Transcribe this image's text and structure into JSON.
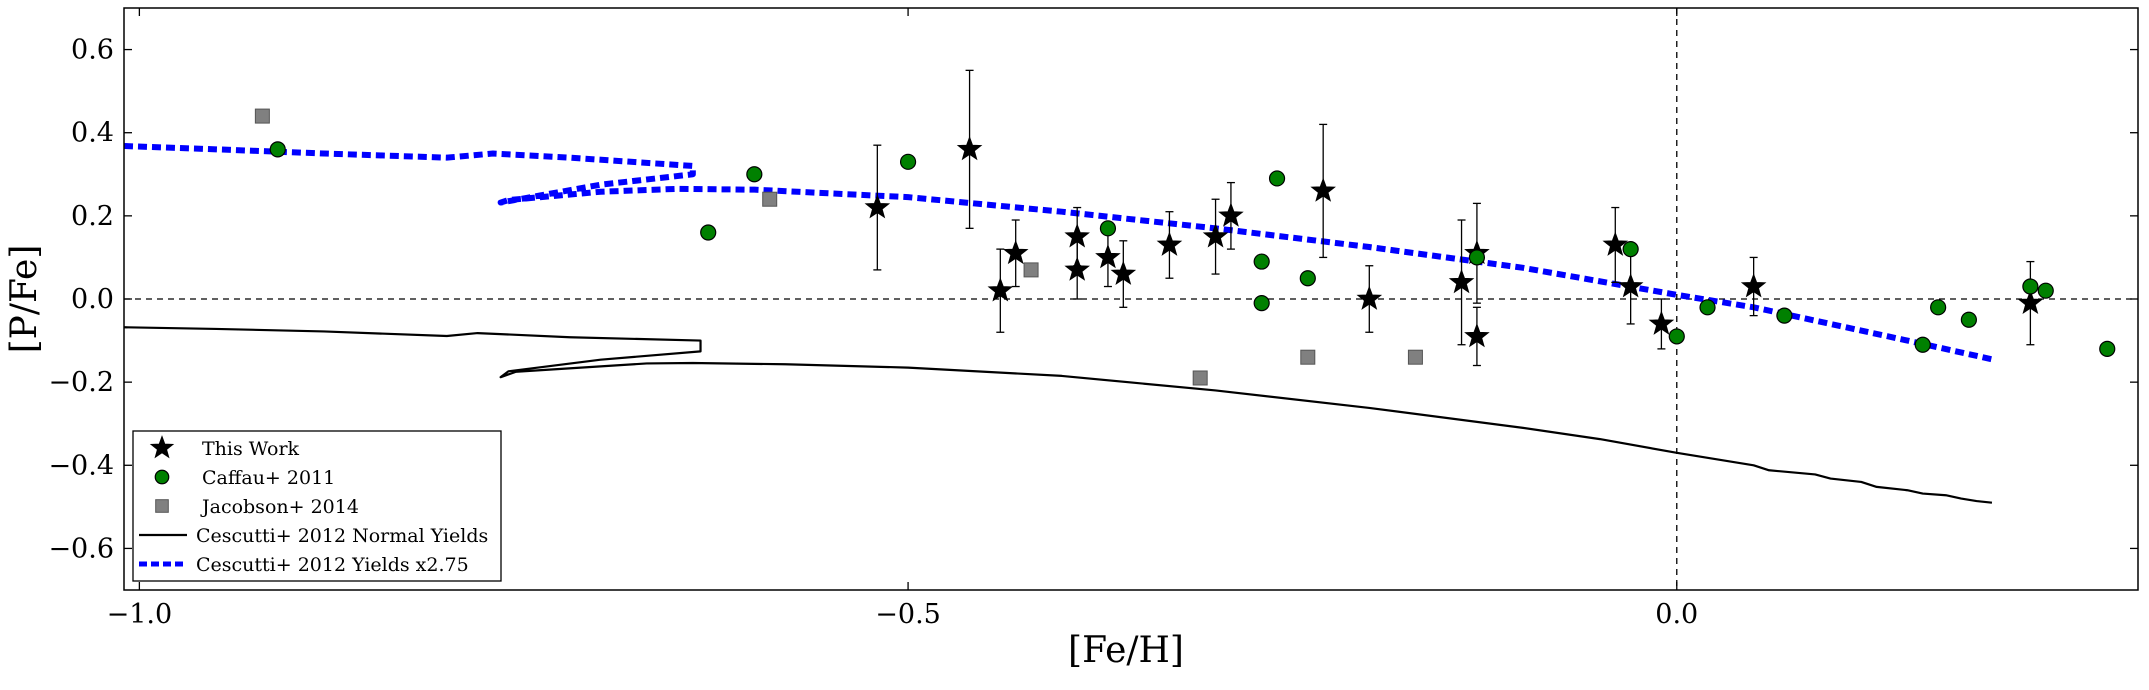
{
  "chart_data": {
    "type": "scatter",
    "xlabel": "[Fe/H]",
    "ylabel": "[P/Fe]",
    "xlim": [
      -1.01,
      0.3
    ],
    "ylim": [
      -0.7,
      0.7
    ],
    "xticks": [
      -1.0,
      -0.5,
      0.0
    ],
    "xtick_labels": [
      "−1.0",
      "−0.5",
      "0.0"
    ],
    "yticks": [
      -0.6,
      -0.4,
      -0.2,
      0.0,
      0.2,
      0.4,
      0.6
    ],
    "ytick_labels": [
      "−0.6",
      "−0.4",
      "−0.2",
      "0.0",
      "0.2",
      "0.4",
      "0.6"
    ],
    "grid": false,
    "legend_position": "lower-left",
    "reference_lines": {
      "horizontal_y": 0.0,
      "vertical_x": 0.0,
      "style": "dashed"
    },
    "series": [
      {
        "name": "This Work",
        "kind": "points",
        "marker": "star",
        "color": "#000000",
        "points": [
          {
            "x": -0.52,
            "y": 0.22,
            "err": 0.15
          },
          {
            "x": -0.46,
            "y": 0.36,
            "err": 0.19
          },
          {
            "x": -0.44,
            "y": 0.02,
            "err": 0.1
          },
          {
            "x": -0.43,
            "y": 0.11,
            "err": 0.08
          },
          {
            "x": -0.39,
            "y": 0.15,
            "err": 0.07
          },
          {
            "x": -0.39,
            "y": 0.07,
            "err": 0.07
          },
          {
            "x": -0.37,
            "y": 0.1,
            "err": 0.07
          },
          {
            "x": -0.36,
            "y": 0.06,
            "err": 0.08
          },
          {
            "x": -0.33,
            "y": 0.13,
            "err": 0.08
          },
          {
            "x": -0.3,
            "y": 0.15,
            "err": 0.09
          },
          {
            "x": -0.29,
            "y": 0.2,
            "err": 0.08
          },
          {
            "x": -0.23,
            "y": 0.26,
            "err": 0.16
          },
          {
            "x": -0.2,
            "y": 0.0,
            "err": 0.08
          },
          {
            "x": -0.14,
            "y": 0.04,
            "err": 0.15
          },
          {
            "x": -0.13,
            "y": 0.11,
            "err": 0.12
          },
          {
            "x": -0.13,
            "y": -0.09,
            "err": 0.07
          },
          {
            "x": -0.04,
            "y": 0.13,
            "err": 0.09
          },
          {
            "x": -0.03,
            "y": 0.03,
            "err": 0.09
          },
          {
            "x": -0.01,
            "y": -0.06,
            "err": 0.06
          },
          {
            "x": 0.05,
            "y": 0.03,
            "err": 0.07
          },
          {
            "x": 0.23,
            "y": -0.01,
            "err": 0.1
          }
        ]
      },
      {
        "name": "Caffau+ 2011",
        "kind": "points",
        "marker": "circle",
        "color": "#008000",
        "points": [
          {
            "x": -0.91,
            "y": 0.36
          },
          {
            "x": -0.63,
            "y": 0.16
          },
          {
            "x": -0.6,
            "y": 0.3
          },
          {
            "x": -0.5,
            "y": 0.33
          },
          {
            "x": -0.37,
            "y": 0.17
          },
          {
            "x": -0.27,
            "y": 0.09
          },
          {
            "x": -0.27,
            "y": -0.01
          },
          {
            "x": -0.26,
            "y": 0.29
          },
          {
            "x": -0.24,
            "y": 0.05
          },
          {
            "x": -0.13,
            "y": 0.1
          },
          {
            "x": -0.03,
            "y": 0.12
          },
          {
            "x": 0.0,
            "y": -0.09
          },
          {
            "x": 0.02,
            "y": -0.02
          },
          {
            "x": 0.07,
            "y": -0.04
          },
          {
            "x": 0.16,
            "y": -0.11
          },
          {
            "x": 0.17,
            "y": -0.02
          },
          {
            "x": 0.19,
            "y": -0.05
          },
          {
            "x": 0.23,
            "y": 0.03
          },
          {
            "x": 0.24,
            "y": 0.02
          },
          {
            "x": 0.28,
            "y": -0.12
          }
        ]
      },
      {
        "name": "Jacobson+ 2014",
        "kind": "points",
        "marker": "square",
        "color": "#808080",
        "points": [
          {
            "x": -0.92,
            "y": 0.44
          },
          {
            "x": -0.59,
            "y": 0.24
          },
          {
            "x": -0.42,
            "y": 0.07
          },
          {
            "x": -0.31,
            "y": -0.19
          },
          {
            "x": -0.24,
            "y": -0.14
          },
          {
            "x": -0.17,
            "y": -0.14
          }
        ]
      },
      {
        "name": "Cescutti+ 2012 Normal Yields",
        "kind": "line",
        "style": "solid",
        "color": "#000000",
        "points": [
          {
            "x": -1.01,
            "y": -0.068
          },
          {
            "x": -0.95,
            "y": -0.072
          },
          {
            "x": -0.88,
            "y": -0.078
          },
          {
            "x": -0.8,
            "y": -0.089
          },
          {
            "x": -0.78,
            "y": -0.082
          },
          {
            "x": -0.72,
            "y": -0.092
          },
          {
            "x": -0.635,
            "y": -0.1
          },
          {
            "x": -0.635,
            "y": -0.126
          },
          {
            "x": -0.7,
            "y": -0.146
          },
          {
            "x": -0.76,
            "y": -0.174
          },
          {
            "x": -0.765,
            "y": -0.188
          },
          {
            "x": -0.755,
            "y": -0.175
          },
          {
            "x": -0.7,
            "y": -0.162
          },
          {
            "x": -0.67,
            "y": -0.155
          },
          {
            "x": -0.64,
            "y": -0.154
          },
          {
            "x": -0.58,
            "y": -0.157
          },
          {
            "x": -0.5,
            "y": -0.165
          },
          {
            "x": -0.4,
            "y": -0.185
          },
          {
            "x": -0.3,
            "y": -0.22
          },
          {
            "x": -0.2,
            "y": -0.262
          },
          {
            "x": -0.1,
            "y": -0.31
          },
          {
            "x": -0.05,
            "y": -0.337
          },
          {
            "x": 0.0,
            "y": -0.37
          },
          {
            "x": 0.05,
            "y": -0.4
          },
          {
            "x": 0.06,
            "y": -0.412
          },
          {
            "x": 0.09,
            "y": -0.422
          },
          {
            "x": 0.1,
            "y": -0.432
          },
          {
            "x": 0.12,
            "y": -0.44
          },
          {
            "x": 0.13,
            "y": -0.452
          },
          {
            "x": 0.15,
            "y": -0.46
          },
          {
            "x": 0.16,
            "y": -0.468
          },
          {
            "x": 0.175,
            "y": -0.472
          },
          {
            "x": 0.185,
            "y": -0.48
          },
          {
            "x": 0.195,
            "y": -0.486
          },
          {
            "x": 0.205,
            "y": -0.49
          }
        ]
      },
      {
        "name": "Cescutti+ 2012 Yields x2.75",
        "kind": "line",
        "style": "dashed",
        "color": "#0000ff",
        "points": [
          {
            "x": -1.01,
            "y": 0.368
          },
          {
            "x": -0.95,
            "y": 0.36
          },
          {
            "x": -0.88,
            "y": 0.35
          },
          {
            "x": -0.8,
            "y": 0.34
          },
          {
            "x": -0.77,
            "y": 0.35
          },
          {
            "x": -0.72,
            "y": 0.34
          },
          {
            "x": -0.64,
            "y": 0.32
          },
          {
            "x": -0.64,
            "y": 0.3
          },
          {
            "x": -0.7,
            "y": 0.275
          },
          {
            "x": -0.765,
            "y": 0.232
          },
          {
            "x": -0.76,
            "y": 0.238
          },
          {
            "x": -0.7,
            "y": 0.258
          },
          {
            "x": -0.65,
            "y": 0.265
          },
          {
            "x": -0.6,
            "y": 0.263
          },
          {
            "x": -0.5,
            "y": 0.245
          },
          {
            "x": -0.4,
            "y": 0.21
          },
          {
            "x": -0.3,
            "y": 0.17
          },
          {
            "x": -0.2,
            "y": 0.125
          },
          {
            "x": -0.1,
            "y": 0.075
          },
          {
            "x": 0.0,
            "y": 0.01
          },
          {
            "x": 0.05,
            "y": -0.02
          },
          {
            "x": 0.1,
            "y": -0.06
          },
          {
            "x": 0.15,
            "y": -0.1
          },
          {
            "x": 0.205,
            "y": -0.145
          }
        ]
      }
    ]
  }
}
